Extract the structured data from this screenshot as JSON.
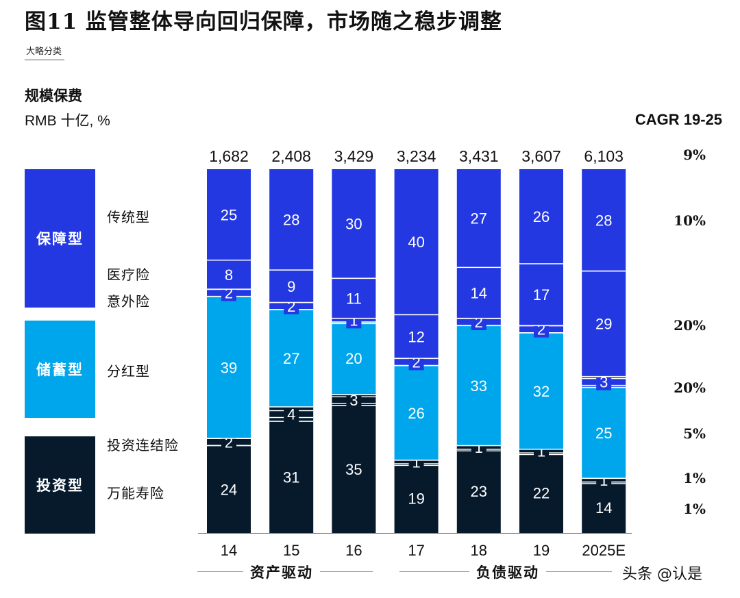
{
  "title": "图11 监管整体导向回归保障，市场随之稳步调整",
  "source_tag": "大略分类",
  "subtitle": "规模保费",
  "unit": "RMB 十亿, %",
  "cagr_header": "CAGR 19-25",
  "colors": {
    "protection": "#2338e0",
    "savings": "#00a6ec",
    "investment": "#071a2c"
  },
  "legend": {
    "protection": "保障型",
    "savings": "储蓄型",
    "investment": "投资型",
    "traditional": "传统型",
    "medical": "医疗险",
    "accident": "意外险",
    "participating": "分红型",
    "unit_linked": "投资连结险",
    "universal": "万能寿险"
  },
  "group_labels": {
    "asset_driven": "资产驱动",
    "liability_driven": "负债驱动"
  },
  "watermark": "头条 @认是",
  "chart_data": {
    "type": "bar",
    "stacked": "100%",
    "categories": [
      "14",
      "15",
      "16",
      "17",
      "18",
      "19",
      "2025E"
    ],
    "totals": [
      "1,682",
      "2,408",
      "3,429",
      "3,234",
      "3,431",
      "3,607",
      "6,103"
    ],
    "series": [
      {
        "name": "万能寿险",
        "color": "#071a2c",
        "values": [
          24,
          31,
          35,
          19,
          23,
          22,
          14
        ]
      },
      {
        "name": "投资连结险",
        "color": "#071a2c",
        "values": [
          2,
          4,
          3,
          1,
          1,
          1,
          1
        ]
      },
      {
        "name": "分红型",
        "color": "#00a6ec",
        "values": [
          39,
          27,
          20,
          26,
          33,
          32,
          25
        ]
      },
      {
        "name": "意外险",
        "color": "#2338e0",
        "values": [
          2,
          2,
          1,
          2,
          2,
          2,
          3
        ]
      },
      {
        "name": "医疗险",
        "color": "#2338e0",
        "values": [
          8,
          9,
          11,
          12,
          14,
          17,
          29
        ]
      },
      {
        "name": "传统型",
        "color": "#2338e0",
        "values": [
          25,
          28,
          30,
          40,
          27,
          26,
          28
        ]
      }
    ],
    "cagr": [
      "9%",
      "10%",
      "20%",
      "20%",
      "5%",
      "1%",
      "1%"
    ]
  }
}
